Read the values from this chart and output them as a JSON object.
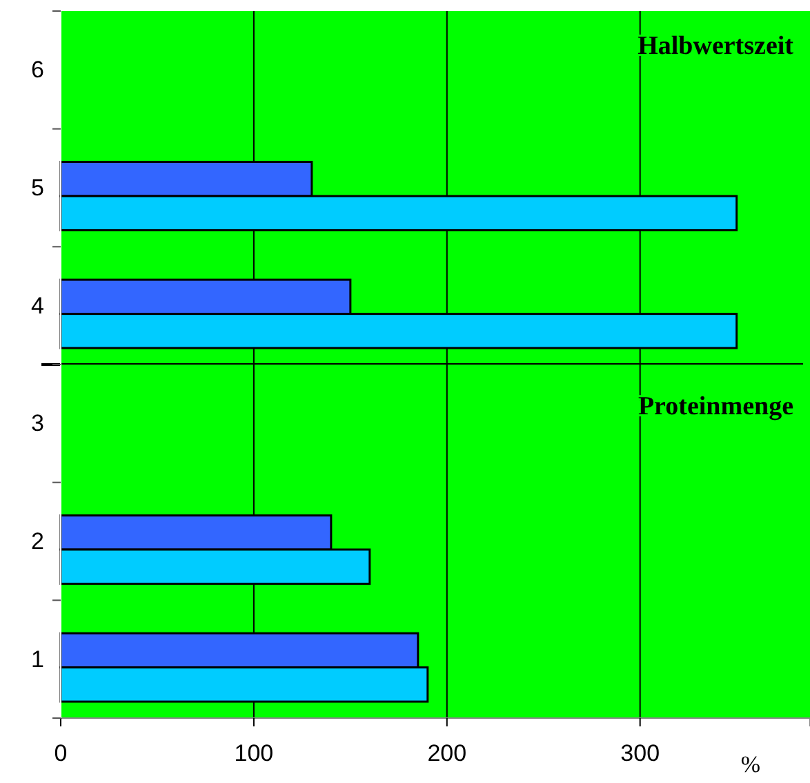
{
  "chart_data": [
    {
      "type": "bar",
      "orientation": "horizontal",
      "categories": [
        "6",
        "5",
        "4"
      ],
      "series": [
        {
          "color": "#3366ff",
          "values": [
            null,
            130,
            150
          ]
        },
        {
          "color": "#00ccff",
          "values": [
            null,
            350,
            350
          ]
        }
      ],
      "xlim": [
        0,
        388
      ],
      "xticks": [
        0,
        100,
        200,
        300
      ],
      "grid": "x",
      "tick_labels": "y",
      "annotations": [
        "Halbwertszeit"
      ]
    },
    {
      "type": "bar",
      "orientation": "horizontal",
      "categories": [
        "3",
        "2",
        "1"
      ],
      "series": [
        {
          "color": "#3366ff",
          "values": [
            null,
            140,
            185
          ]
        },
        {
          "color": "#00ccff",
          "values": [
            null,
            160,
            190
          ]
        }
      ],
      "xlim": [
        0,
        388
      ],
      "xticks": [
        0,
        100,
        200,
        300
      ],
      "xlabel": "%",
      "grid": "x",
      "annotations": [
        "Proteinmenge"
      ]
    }
  ]
}
